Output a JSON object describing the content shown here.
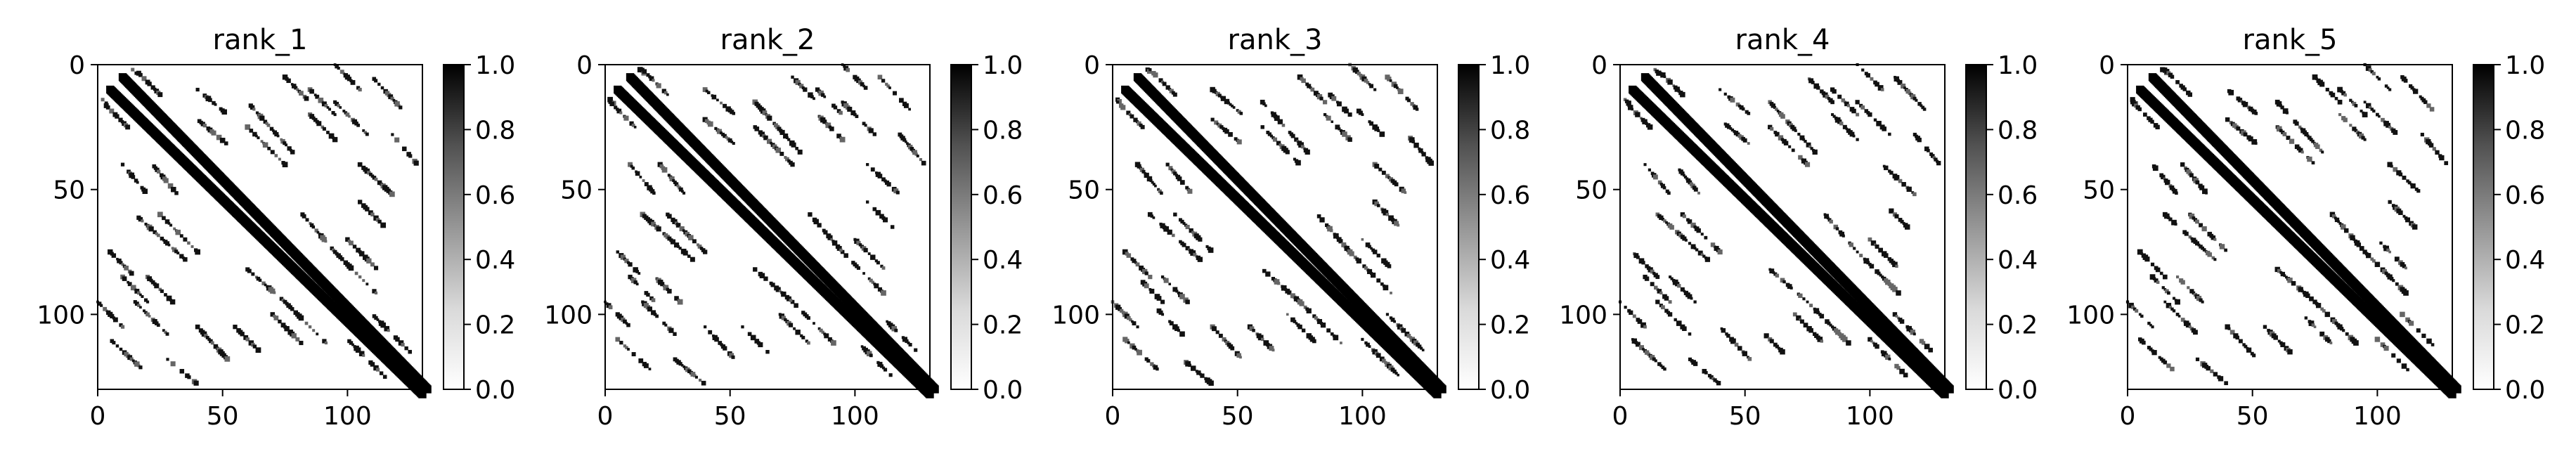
{
  "chart_data": [
    {
      "type": "heatmap",
      "title": "rank_1",
      "xlim": [
        0,
        130
      ],
      "ylim": [
        130,
        0
      ],
      "xticks": [
        0,
        50,
        100
      ],
      "yticks": [
        0,
        50,
        100
      ],
      "colormap": "Greys",
      "colorbar": {
        "range": [
          0.0,
          1.0
        ],
        "ticks": [
          "0.0",
          "0.2",
          "0.4",
          "0.6",
          "0.8",
          "1.0"
        ]
      },
      "contact_segments": [
        [
          5,
          10,
          130,
          132
        ],
        [
          2,
          14,
          4,
          16
        ],
        [
          15,
          60,
          35,
          78
        ],
        [
          95,
          75,
          112,
          92
        ],
        [
          40,
          22,
          52,
          32
        ],
        [
          2,
          15,
          12,
          25
        ],
        [
          100,
          110,
          115,
          125
        ],
        [
          60,
          25,
          75,
          40
        ],
        [
          60,
          82,
          75,
          95
        ],
        [
          105,
          40,
          118,
          52
        ],
        [
          15,
          95,
          28,
          108
        ],
        [
          28,
          118,
          40,
          128
        ],
        [
          70,
          100,
          82,
          112
        ],
        [
          5,
          110,
          18,
          122
        ],
        [
          0,
          95,
          10,
          105
        ],
        [
          75,
          5,
          85,
          15
        ],
        [
          85,
          10,
          95,
          20
        ],
        [
          55,
          105,
          65,
          115
        ],
        [
          10,
          40,
          20,
          52
        ],
        [
          20,
          85,
          30,
          95
        ]
      ]
    },
    {
      "type": "heatmap",
      "title": "rank_2",
      "xlim": [
        0,
        130
      ],
      "ylim": [
        130,
        0
      ],
      "xticks": [
        0,
        50,
        100
      ],
      "yticks": [
        0,
        50,
        100
      ],
      "colormap": "Greys",
      "colorbar": {
        "range": [
          0.0,
          1.0
        ],
        "ticks": [
          "0.0",
          "0.2",
          "0.4",
          "0.6",
          "0.8",
          "1.0"
        ]
      },
      "contact_segments": [
        [
          5,
          10,
          130,
          132
        ],
        [
          2,
          14,
          4,
          16
        ],
        [
          15,
          60,
          35,
          78
        ],
        [
          95,
          75,
          112,
          92
        ],
        [
          40,
          22,
          52,
          32
        ],
        [
          2,
          15,
          12,
          25
        ],
        [
          100,
          110,
          115,
          125
        ],
        [
          60,
          25,
          75,
          40
        ],
        [
          60,
          82,
          75,
          95
        ],
        [
          105,
          40,
          118,
          52
        ],
        [
          15,
          95,
          28,
          108
        ],
        [
          28,
          118,
          40,
          128
        ],
        [
          70,
          100,
          82,
          112
        ],
        [
          5,
          110,
          18,
          122
        ],
        [
          0,
          95,
          10,
          105
        ],
        [
          75,
          5,
          85,
          15
        ],
        [
          85,
          10,
          95,
          20
        ],
        [
          55,
          105,
          65,
          115
        ],
        [
          10,
          40,
          20,
          52
        ],
        [
          20,
          85,
          30,
          95
        ]
      ]
    },
    {
      "type": "heatmap",
      "title": "rank_3",
      "xlim": [
        0,
        130
      ],
      "ylim": [
        130,
        0
      ],
      "xticks": [
        0,
        50,
        100
      ],
      "yticks": [
        0,
        50,
        100
      ],
      "colormap": "Greys",
      "colorbar": {
        "range": [
          0.0,
          1.0
        ],
        "ticks": [
          "0.0",
          "0.2",
          "0.4",
          "0.6",
          "0.8",
          "1.0"
        ]
      },
      "contact_segments": [
        [
          5,
          10,
          130,
          132
        ],
        [
          2,
          14,
          4,
          16
        ],
        [
          15,
          60,
          35,
          78
        ],
        [
          95,
          75,
          112,
          92
        ],
        [
          40,
          22,
          52,
          32
        ],
        [
          2,
          15,
          12,
          25
        ],
        [
          100,
          110,
          115,
          125
        ],
        [
          60,
          25,
          75,
          40
        ],
        [
          60,
          82,
          75,
          95
        ],
        [
          105,
          40,
          118,
          52
        ],
        [
          15,
          95,
          28,
          108
        ],
        [
          28,
          118,
          40,
          128
        ],
        [
          70,
          100,
          82,
          112
        ],
        [
          5,
          110,
          18,
          122
        ],
        [
          0,
          95,
          10,
          105
        ],
        [
          75,
          5,
          85,
          15
        ],
        [
          85,
          10,
          95,
          20
        ],
        [
          55,
          105,
          65,
          115
        ],
        [
          10,
          40,
          20,
          52
        ],
        [
          20,
          85,
          30,
          95
        ]
      ]
    },
    {
      "type": "heatmap",
      "title": "rank_4",
      "xlim": [
        0,
        130
      ],
      "ylim": [
        130,
        0
      ],
      "xticks": [
        0,
        50,
        100
      ],
      "yticks": [
        0,
        50,
        100
      ],
      "colormap": "Greys",
      "colorbar": {
        "range": [
          0.0,
          1.0
        ],
        "ticks": [
          "0.0",
          "0.2",
          "0.4",
          "0.6",
          "0.8",
          "1.0"
        ]
      },
      "contact_segments": [
        [
          5,
          10,
          130,
          132
        ],
        [
          2,
          14,
          4,
          16
        ],
        [
          15,
          60,
          35,
          78
        ],
        [
          95,
          75,
          112,
          92
        ],
        [
          40,
          22,
          52,
          32
        ],
        [
          2,
          15,
          12,
          25
        ],
        [
          100,
          110,
          115,
          125
        ],
        [
          60,
          25,
          75,
          40
        ],
        [
          60,
          82,
          75,
          95
        ],
        [
          105,
          40,
          118,
          52
        ],
        [
          15,
          95,
          28,
          108
        ],
        [
          28,
          118,
          40,
          128
        ],
        [
          70,
          100,
          82,
          112
        ],
        [
          5,
          110,
          18,
          122
        ],
        [
          0,
          95,
          10,
          105
        ],
        [
          75,
          5,
          85,
          15
        ],
        [
          85,
          10,
          95,
          20
        ],
        [
          55,
          105,
          65,
          115
        ],
        [
          10,
          40,
          20,
          52
        ],
        [
          20,
          85,
          30,
          95
        ]
      ]
    },
    {
      "type": "heatmap",
      "title": "rank_5",
      "xlim": [
        0,
        130
      ],
      "ylim": [
        130,
        0
      ],
      "xticks": [
        0,
        50,
        100
      ],
      "yticks": [
        0,
        50,
        100
      ],
      "colormap": "Greys",
      "colorbar": {
        "range": [
          0.0,
          1.0
        ],
        "ticks": [
          "0.0",
          "0.2",
          "0.4",
          "0.6",
          "0.8",
          "1.0"
        ]
      },
      "contact_segments": [
        [
          5,
          10,
          130,
          132
        ],
        [
          2,
          14,
          4,
          16
        ],
        [
          15,
          60,
          35,
          78
        ],
        [
          95,
          75,
          112,
          92
        ],
        [
          40,
          22,
          52,
          32
        ],
        [
          2,
          15,
          12,
          25
        ],
        [
          100,
          110,
          115,
          125
        ],
        [
          60,
          25,
          75,
          40
        ],
        [
          60,
          82,
          75,
          95
        ],
        [
          105,
          40,
          118,
          52
        ],
        [
          15,
          95,
          28,
          108
        ],
        [
          28,
          118,
          40,
          128
        ],
        [
          70,
          100,
          82,
          112
        ],
        [
          5,
          110,
          18,
          122
        ],
        [
          0,
          95,
          10,
          105
        ],
        [
          75,
          5,
          85,
          15
        ],
        [
          85,
          10,
          95,
          20
        ],
        [
          55,
          105,
          65,
          115
        ],
        [
          10,
          40,
          20,
          52
        ],
        [
          20,
          85,
          30,
          95
        ]
      ]
    }
  ]
}
